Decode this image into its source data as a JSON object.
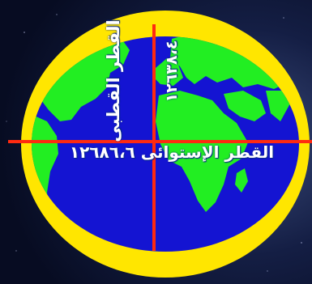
{
  "colors": {
    "space": "#0b1330",
    "planet_outline": "#ffe600",
    "ocean": "#1414d2",
    "land": "#22ee22",
    "axis_lines": "#ff2a10",
    "label_text": "#ffffff"
  },
  "diagram": {
    "polar_diameter": {
      "label": "القطر القطبى",
      "value": "١٢٦٣٨،٤"
    },
    "equatorial_diameter": {
      "text": "القطر الإستوائى ١٢٦٨٦،٦"
    }
  }
}
